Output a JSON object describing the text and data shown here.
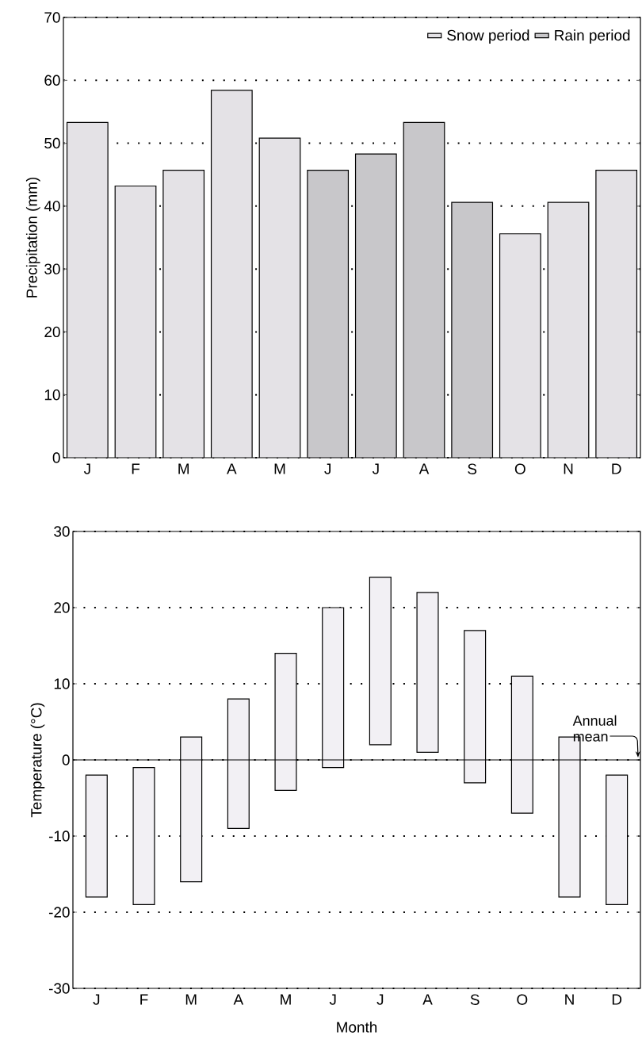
{
  "chart_data": [
    {
      "type": "bar",
      "categories": [
        "J",
        "F",
        "M",
        "A",
        "M",
        "J",
        "J",
        "A",
        "S",
        "O",
        "N",
        "D"
      ],
      "ylabel": "Precipitation (mm)",
      "ylim": [
        0,
        70
      ],
      "yticks": [
        0,
        10,
        20,
        30,
        40,
        50,
        60,
        70
      ],
      "grid": "y",
      "legend": "top right",
      "series": [
        {
          "name": "Snow period",
          "color": "#e4e2e6",
          "values": [
            53.3,
            43.2,
            45.7,
            58.4,
            50.8,
            null,
            null,
            null,
            null,
            35.6,
            40.6,
            45.7
          ]
        },
        {
          "name": "Rain period",
          "color": "#c8c7ca",
          "values": [
            null,
            null,
            null,
            null,
            null,
            45.7,
            48.3,
            53.3,
            40.6,
            null,
            null,
            null
          ]
        }
      ]
    },
    {
      "type": "bar",
      "categories": [
        "J",
        "F",
        "M",
        "A",
        "M",
        "J",
        "J",
        "A",
        "S",
        "O",
        "N",
        "D"
      ],
      "xlabel": "Month",
      "ylabel": "Temperature (°C)",
      "ylim": [
        -30,
        30
      ],
      "yticks": [
        -30,
        -20,
        -10,
        0,
        10,
        20,
        30
      ],
      "grid": "y",
      "color": "#f2f0f4",
      "base": [
        -18,
        -19,
        -16,
        -9,
        -4,
        -1,
        2,
        1,
        -3,
        -7,
        -18,
        -19
      ],
      "values": [
        16,
        18,
        19,
        17,
        18,
        21,
        22,
        21,
        20,
        18,
        21,
        17
      ],
      "ref_lines": [
        {
          "axis": "y",
          "value": 0,
          "label": "Annual mean"
        }
      ]
    }
  ]
}
